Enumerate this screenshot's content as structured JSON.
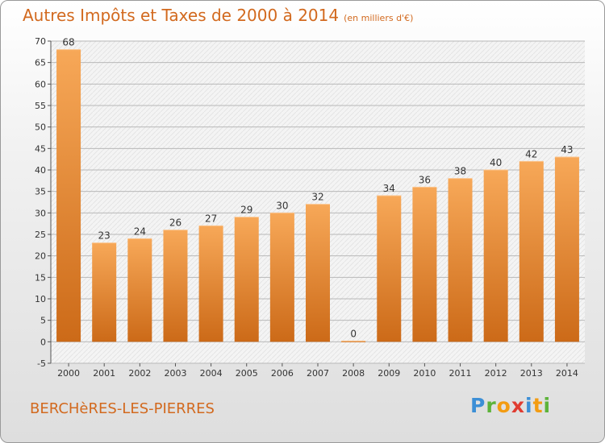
{
  "title": "Autres Impôts et Taxes de 2000 à 2014",
  "subtitle": "(en milliers d'€)",
  "commune": "BERCHèRES-LES-PIERRES",
  "logo": {
    "text": "Proxiti",
    "letters": [
      {
        "ch": "P",
        "color": "#3c8fd6"
      },
      {
        "ch": "r",
        "color": "#5db33a"
      },
      {
        "ch": "o",
        "color": "#f39c12"
      },
      {
        "ch": "x",
        "color": "#e03c31"
      },
      {
        "ch": "i",
        "color": "#3c8fd6"
      },
      {
        "ch": "t",
        "color": "#f39c12"
      },
      {
        "ch": "i",
        "color": "#5db33a"
      }
    ]
  },
  "colors": {
    "accent": "#d2691e",
    "bar_light": "#f7a858",
    "bar_dark": "#cc6a18",
    "grid": "#b8b8b8",
    "axis_text": "#333333"
  },
  "chart_data": {
    "type": "bar",
    "categories": [
      "2000",
      "2001",
      "2002",
      "2003",
      "2004",
      "2005",
      "2006",
      "2007",
      "2008",
      "2009",
      "2010",
      "2011",
      "2012",
      "2013",
      "2014"
    ],
    "values": [
      68,
      23,
      24,
      26,
      27,
      29,
      30,
      32,
      0,
      34,
      36,
      38,
      40,
      42,
      43
    ],
    "ylim": [
      -5,
      70
    ],
    "yticks": [
      -5,
      0,
      5,
      10,
      15,
      20,
      25,
      30,
      35,
      40,
      45,
      50,
      55,
      60,
      65,
      70
    ],
    "grid": true,
    "xlabel": "",
    "ylabel": ""
  }
}
